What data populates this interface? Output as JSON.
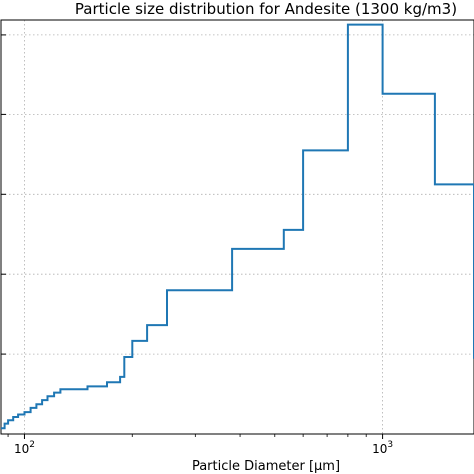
{
  "chart_data": {
    "type": "line",
    "step": true,
    "title": "Particle size distribution for Andesite (1300 kg/m3)",
    "xlabel": "Particle Diameter [μm]",
    "ylabel": "",
    "xscale": "log",
    "xlim": [
      86,
      1800
    ],
    "ylim": [
      0,
      1
    ],
    "grid": true,
    "grid_style": "dotted",
    "line_color": "#1f77b4",
    "x_ticks": [
      {
        "value": 100,
        "base": "10",
        "exp": "2"
      },
      {
        "value": 1000,
        "base": "10",
        "exp": "3"
      }
    ],
    "y_gridlines": [
      0.193,
      0.386,
      0.579,
      0.772,
      0.964
    ],
    "x": [
      86,
      88,
      90,
      93,
      96,
      100,
      104,
      108,
      112,
      116,
      121,
      126,
      150,
      170,
      185,
      190,
      200,
      220,
      250,
      380,
      530,
      600,
      800,
      1000,
      1400,
      1800
    ],
    "y": [
      0.014,
      0.025,
      0.033,
      0.041,
      0.047,
      0.053,
      0.063,
      0.072,
      0.082,
      0.091,
      0.1,
      0.108,
      0.115,
      0.125,
      0.138,
      0.186,
      0.225,
      0.263,
      0.347,
      0.447,
      0.493,
      0.685,
      0.989,
      0.822,
      0.603,
      0.182
    ]
  }
}
